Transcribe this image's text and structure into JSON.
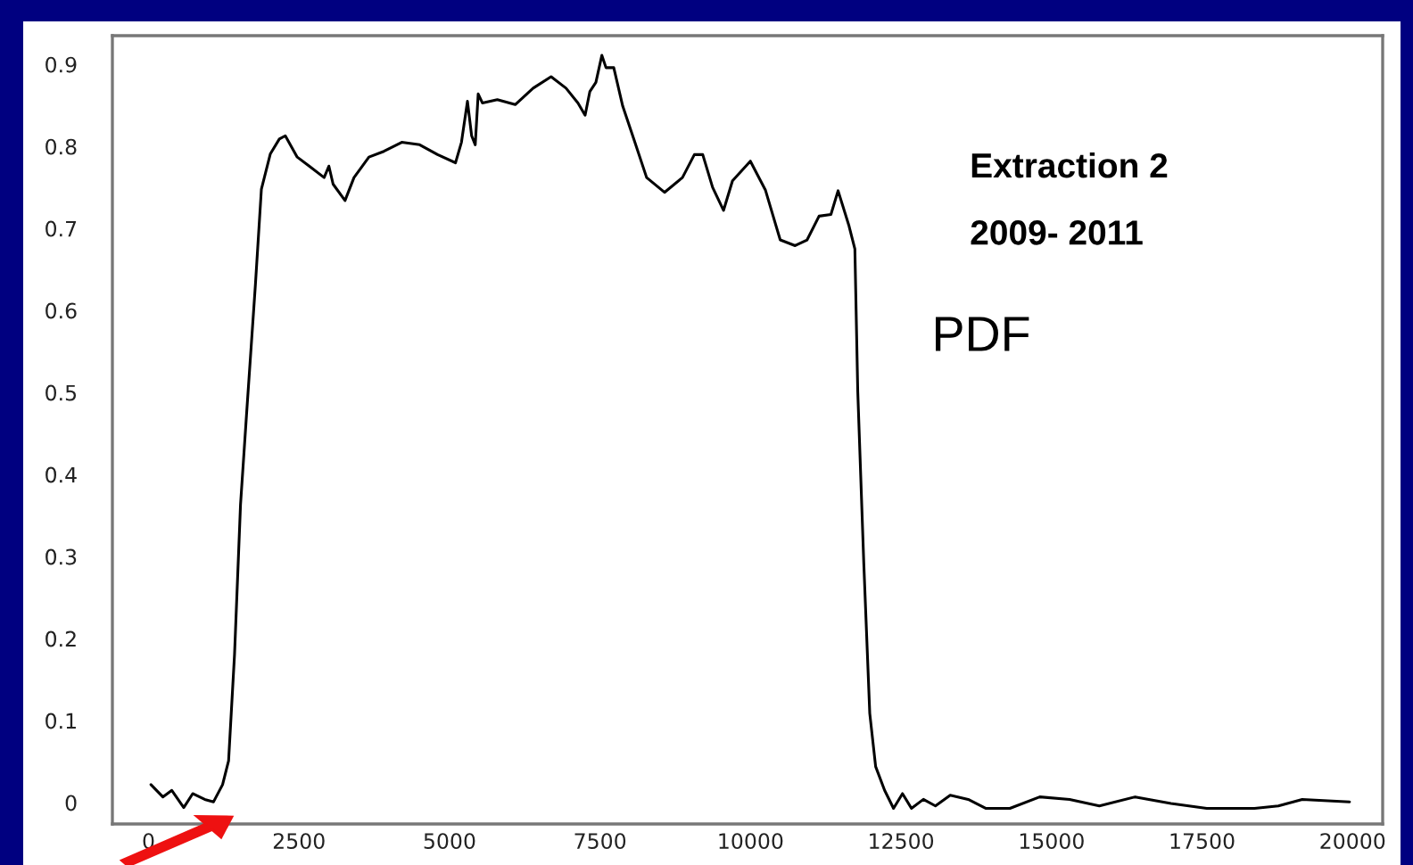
{
  "chart_data": {
    "type": "line",
    "annotations": [
      "Extraction 2",
      "2009- 2011",
      "PDF"
    ],
    "xlim": [
      -600,
      20500
    ],
    "ylim": [
      -0.026,
      0.935
    ],
    "xticks": [
      0,
      2500,
      5000,
      7500,
      10000,
      12500,
      15000,
      17500,
      20000
    ],
    "yticks": [
      0,
      0.1,
      0.2,
      0.3,
      0.4,
      0.5,
      0.6,
      0.7,
      0.8,
      0.9
    ],
    "grid": false,
    "marker": "none",
    "line_style": "solid",
    "series": [
      {
        "color": "#000000",
        "x": [
          40,
          238,
          387,
          585,
          734,
          933,
          1080,
          1230,
          1330,
          1429,
          1528,
          1627,
          1776,
          1875,
          2024,
          2173,
          2272,
          2470,
          2669,
          2917,
          2996,
          3066,
          3264,
          3413,
          3661,
          3909,
          4206,
          4504,
          4802,
          5099,
          5198,
          5298,
          5367,
          5427,
          5476,
          5546,
          5794,
          6091,
          6389,
          6687,
          6935,
          7133,
          7252,
          7331,
          7431,
          7530,
          7599,
          7728,
          7877,
          8075,
          8274,
          8571,
          8869,
          9067,
          9206,
          9370,
          9551,
          9700,
          9997,
          10246,
          10493,
          10741,
          10939,
          11138,
          11335,
          11454,
          11632,
          11733,
          11781,
          11882,
          11980,
          12078,
          12227,
          12375,
          12524,
          12673,
          12871,
          13071,
          13317,
          13615,
          13912,
          14308,
          14804,
          15300,
          15794,
          16389,
          16984,
          17578,
          18371,
          18767,
          19164,
          19950
        ],
        "values": [
          0.022,
          0.007,
          0.015,
          -0.006,
          0.011,
          0.004,
          0.001,
          0.022,
          0.051,
          0.181,
          0.363,
          0.472,
          0.632,
          0.748,
          0.791,
          0.809,
          0.813,
          0.787,
          0.776,
          0.762,
          0.776,
          0.754,
          0.734,
          0.762,
          0.787,
          0.794,
          0.805,
          0.802,
          0.79,
          0.78,
          0.805,
          0.855,
          0.813,
          0.802,
          0.864,
          0.853,
          0.857,
          0.851,
          0.871,
          0.885,
          0.871,
          0.853,
          0.838,
          0.867,
          0.878,
          0.911,
          0.896,
          0.896,
          0.849,
          0.806,
          0.762,
          0.744,
          0.762,
          0.79,
          0.79,
          0.75,
          0.722,
          0.758,
          0.782,
          0.747,
          0.686,
          0.679,
          0.686,
          0.715,
          0.717,
          0.746,
          0.704,
          0.675,
          0.501,
          0.29,
          0.109,
          0.044,
          0.015,
          -0.007,
          0.011,
          -0.007,
          0.004,
          -0.004,
          0.009,
          0.004,
          -0.007,
          -0.007,
          0.007,
          0.004,
          -0.004,
          0.007,
          -0.001,
          -0.007,
          -0.007,
          -0.004,
          0.004,
          0.001
        ]
      }
    ]
  }
}
